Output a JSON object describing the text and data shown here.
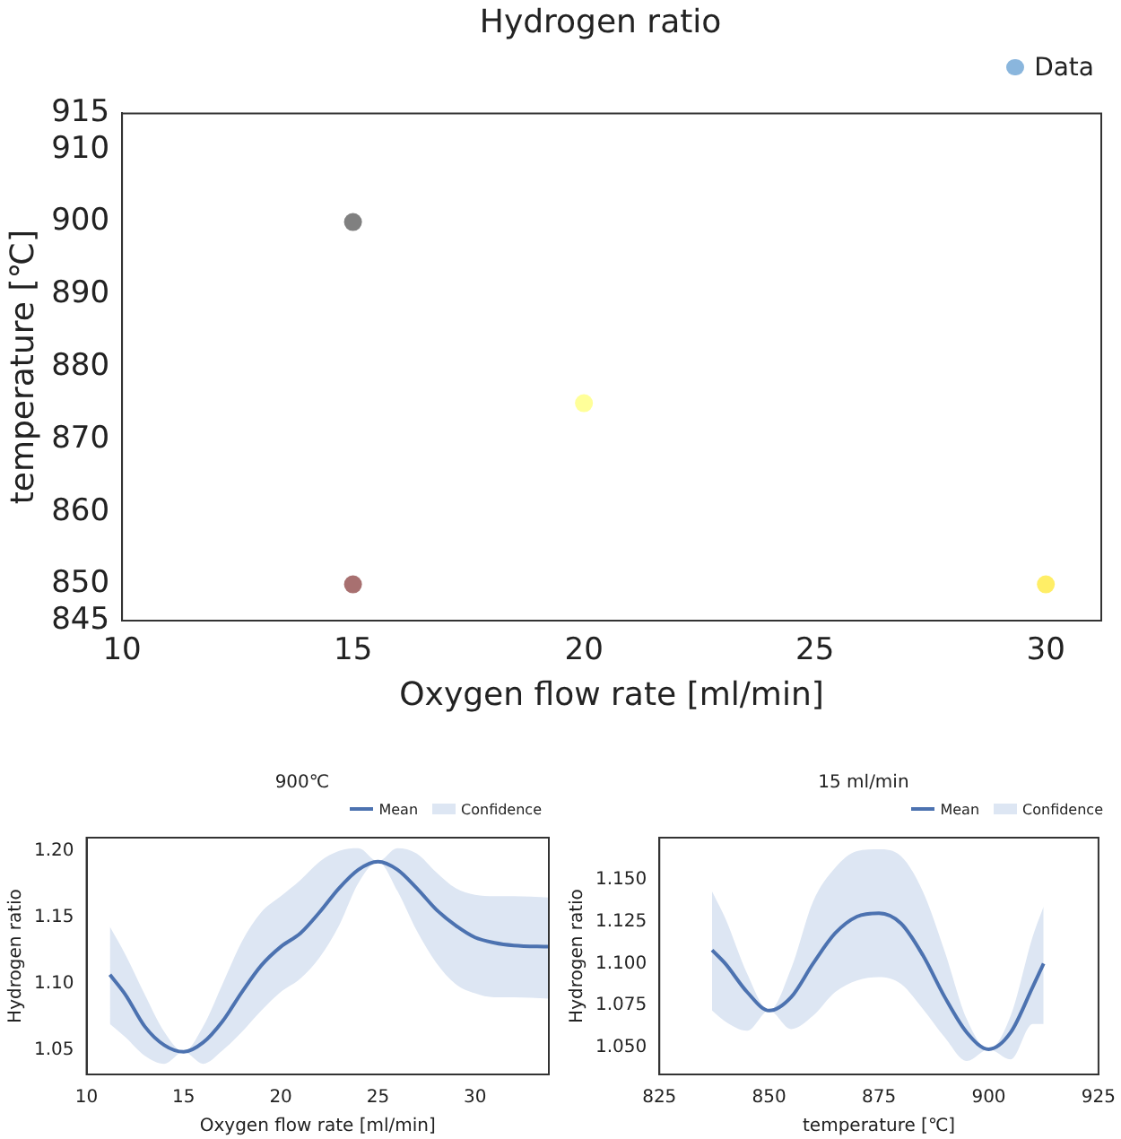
{
  "chart_data": [
    {
      "type": "scatter",
      "title": "Hydrogen ratio",
      "xlabel": "Oxygen flow rate [ml/min]",
      "ylabel": "temperature [℃]",
      "xlim": [
        10,
        31.2
      ],
      "xticks": [
        10,
        15,
        20,
        25,
        30
      ],
      "ylim": [
        845,
        915
      ],
      "yticks": [
        845,
        850,
        860,
        870,
        880,
        890,
        900,
        910,
        915
      ],
      "legend": "top right",
      "marker": "circle",
      "series": [
        {
          "name": "Data",
          "color": "#8ab6dd",
          "x": [
            15,
            15,
            20,
            30
          ],
          "values": [
            900,
            850,
            875,
            850
          ],
          "colors": [
            "#808080",
            "#a87070",
            "#ffff99",
            "#ffee66"
          ]
        }
      ]
    },
    {
      "type": "line",
      "title": "900℃",
      "xlabel": "Oxygen flow rate [ml/min]",
      "ylabel": "Hydrogen ratio",
      "xlim": [
        10,
        33.8
      ],
      "xticks": [
        10,
        15,
        20,
        25,
        30
      ],
      "ylim": [
        1.032,
        1.21
      ],
      "yticks": [
        {
          "value": 1.05,
          "label": "1.05"
        },
        {
          "value": 1.1,
          "label": "1.10"
        },
        {
          "value": 1.15,
          "label": "1.15"
        },
        {
          "value": 1.2,
          "label": "1.20"
        }
      ],
      "legend": "top right",
      "series": [
        {
          "name": "Mean",
          "color": "#4c72b0",
          "x": [
            11.2,
            12,
            13,
            14,
            15,
            16,
            17,
            18,
            19,
            20,
            21,
            22,
            23,
            24,
            25,
            26,
            27,
            28,
            29,
            30,
            31,
            32,
            33.8
          ],
          "values": [
            1.107,
            1.092,
            1.068,
            1.054,
            1.049,
            1.056,
            1.072,
            1.094,
            1.114,
            1.128,
            1.138,
            1.154,
            1.172,
            1.186,
            1.192,
            1.186,
            1.172,
            1.156,
            1.144,
            1.135,
            1.131,
            1.129,
            1.128
          ]
        },
        {
          "name": "Confidence",
          "type": "area",
          "color": "#dde6f3",
          "x": [
            11.2,
            12,
            13,
            14,
            15,
            16,
            17,
            18,
            19,
            20,
            21,
            22,
            23,
            24,
            25,
            26,
            27,
            28,
            29,
            30,
            31,
            32,
            33.8
          ],
          "values": [
            null,
            null,
            null,
            null,
            null,
            null,
            null,
            null,
            null,
            null,
            null,
            null,
            null,
            null,
            null,
            null,
            null,
            null,
            null,
            null,
            null,
            null,
            null
          ],
          "lower": [
            1.07,
            1.06,
            1.046,
            1.04,
            1.049,
            1.04,
            1.05,
            1.064,
            1.08,
            1.094,
            1.104,
            1.12,
            1.144,
            1.176,
            1.192,
            1.17,
            1.14,
            1.116,
            1.1,
            1.093,
            1.09,
            1.09,
            1.089
          ],
          "upper": [
            1.143,
            1.122,
            1.092,
            1.064,
            1.049,
            1.068,
            1.1,
            1.132,
            1.154,
            1.166,
            1.178,
            1.192,
            1.2,
            1.202,
            1.192,
            1.202,
            1.198,
            1.184,
            1.172,
            1.167,
            1.166,
            1.166,
            1.165
          ]
        }
      ]
    },
    {
      "type": "line",
      "title": "15 ml/min",
      "xlabel": "temperature [℃]",
      "ylabel": "Hydrogen ratio",
      "xlim": [
        825,
        925
      ],
      "xticks": [
        825,
        850,
        875,
        900,
        925
      ],
      "ylim": [
        1.034,
        1.175
      ],
      "yticks": [
        {
          "value": 1.05,
          "label": "1.050"
        },
        {
          "value": 1.075,
          "label": "1.075"
        },
        {
          "value": 1.1,
          "label": "1.100"
        },
        {
          "value": 1.125,
          "label": "1.125"
        },
        {
          "value": 1.15,
          "label": "1.150"
        }
      ],
      "legend": "top right",
      "series": [
        {
          "name": "Mean",
          "color": "#4c72b0",
          "x": [
            837,
            840,
            845,
            850,
            855,
            860,
            865,
            870,
            875,
            880,
            885,
            890,
            895,
            900,
            905,
            910,
            912.5
          ],
          "values": [
            1.108,
            1.1,
            1.083,
            1.072,
            1.08,
            1.1,
            1.118,
            1.128,
            1.13,
            1.124,
            1.105,
            1.08,
            1.059,
            1.049,
            1.059,
            1.086,
            1.1
          ]
        },
        {
          "name": "Confidence",
          "type": "area",
          "color": "#dde6f3",
          "x": [
            837,
            840,
            845,
            850,
            855,
            860,
            865,
            870,
            875,
            880,
            885,
            890,
            895,
            900,
            905,
            910,
            912.5
          ],
          "values": [
            null,
            null,
            null,
            null,
            null,
            null,
            null,
            null,
            null,
            null,
            null,
            null,
            null,
            null,
            null,
            null,
            null
          ],
          "lower": [
            1.072,
            1.0655,
            1.06,
            1.072,
            1.061,
            1.069,
            1.083,
            1.09,
            1.092,
            1.088,
            1.073,
            1.056,
            1.042,
            1.049,
            1.043,
            1.064,
            1.064
          ],
          "upper": [
            1.143,
            1.127,
            1.094,
            1.072,
            1.097,
            1.137,
            1.157,
            1.167,
            1.168,
            1.164,
            1.143,
            1.107,
            1.067,
            1.049,
            1.069,
            1.116,
            1.134
          ]
        }
      ]
    }
  ]
}
